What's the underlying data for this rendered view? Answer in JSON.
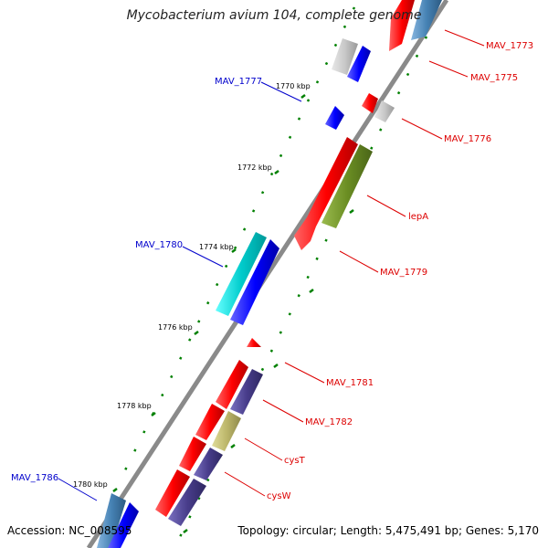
{
  "title": "Mycobacterium avium 104, complete genome",
  "accession": "Accession: NC_008595",
  "topology": "Topology: circular; Length: 5,475,491 bp; Genes: 5,170",
  "ticks": [
    "1770 kbp",
    "1772 kbp",
    "1774 kbp",
    "1776 kbp",
    "1778 kbp",
    "1780 kbp"
  ],
  "labels_right": [
    "MAV_1773",
    "MAV_1775",
    "MAV_1776",
    "lepA",
    "MAV_1779",
    "MAV_1781",
    "MAV_1782",
    "cysT",
    "cysW"
  ],
  "labels_left": [
    "MAV_1777",
    "MAV_1780",
    "MAV_1786"
  ],
  "colors": {
    "forward": "#ff0000",
    "reverse": "#0000ff",
    "left_label": "#0000cc",
    "right_label": "#dd0000",
    "backbone": "#888888",
    "tick": "#008000",
    "olive": "#6b8e23",
    "cyan": "#00cccc",
    "slate": "#483d8b",
    "khaki": "#bdb76b",
    "steel": "#4682b4",
    "grey": "#c0c0c0"
  }
}
